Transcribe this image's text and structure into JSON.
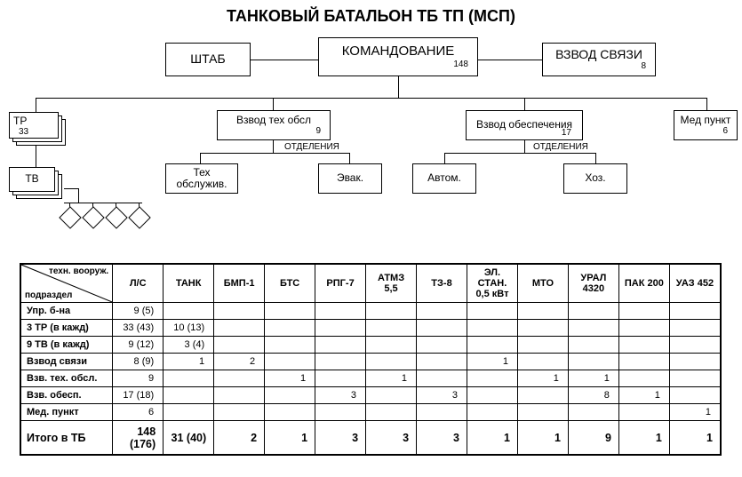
{
  "title": "ТАНКОВЫЙ БАТАЛЬОН ТБ ТП (МСП)",
  "org": {
    "shtab": "ШТАБ",
    "komandovanie": "КОМАНДОВАНИЕ",
    "komandovanie_n": "148",
    "vzvod_svyazi": "ВЗВОД СВЯЗИ",
    "vzvod_svyazi_n": "8",
    "tr": "ТР",
    "tr_n": "33",
    "tv": "ТВ",
    "vzvod_tekh": "Взвод тех обсл",
    "vzvod_tekh_n": "9",
    "vzvod_obesp": "Взвод обеспечения",
    "vzvod_obesp_n": "17",
    "med": "Мед пункт",
    "med_n": "6",
    "otdeleniya": "ОТДЕЛЕНИЯ",
    "tekh_obsl": "Тех обслужив.",
    "evak": "Эвак.",
    "avtom": "Автом.",
    "hoz": "Хоз."
  },
  "table": {
    "diag_top": "техн. вооруж.",
    "diag_bot": "подраздел",
    "columns": [
      "Л/С",
      "ТАНК",
      "БМП-1",
      "БТС",
      "РПГ-7",
      "АТМЗ 5,5",
      "ТЗ-8",
      "ЭЛ. СТАН. 0,5 кВт",
      "МТО",
      "УРАЛ 4320",
      "ПАК 200",
      "УАЗ 452"
    ],
    "rows": [
      {
        "h": "Упр. б-на",
        "c": [
          "9 (5)",
          "",
          "",
          "",
          "",
          "",
          "",
          "",
          "",
          "",
          "",
          ""
        ]
      },
      {
        "h": "3 ТР (в кажд)",
        "c": [
          "33 (43)",
          "10 (13)",
          "",
          "",
          "",
          "",
          "",
          "",
          "",
          "",
          "",
          ""
        ]
      },
      {
        "h": "9 ТВ (в кажд)",
        "c": [
          "9 (12)",
          "3 (4)",
          "",
          "",
          "",
          "",
          "",
          "",
          "",
          "",
          "",
          ""
        ]
      },
      {
        "h": "Взвод связи",
        "c": [
          "8 (9)",
          "1",
          "2",
          "",
          "",
          "",
          "",
          "1",
          "",
          "",
          "",
          ""
        ]
      },
      {
        "h": "Взв. тех. обсл.",
        "c": [
          "9",
          "",
          "",
          "1",
          "",
          "1",
          "",
          "",
          "1",
          "1",
          "",
          ""
        ]
      },
      {
        "h": "Взв. обесп.",
        "c": [
          "17 (18)",
          "",
          "",
          "",
          "3",
          "",
          "3",
          "",
          "",
          "8",
          "1",
          ""
        ]
      },
      {
        "h": "Мед. пункт",
        "c": [
          "6",
          "",
          "",
          "",
          "",
          "",
          "",
          "",
          "",
          "",
          "",
          "1"
        ]
      }
    ],
    "total_h": "Итого в ТБ",
    "total": [
      "148 (176)",
      "31 (40)",
      "2",
      "1",
      "3",
      "3",
      "3",
      "1",
      "1",
      "9",
      "1",
      "1"
    ]
  }
}
